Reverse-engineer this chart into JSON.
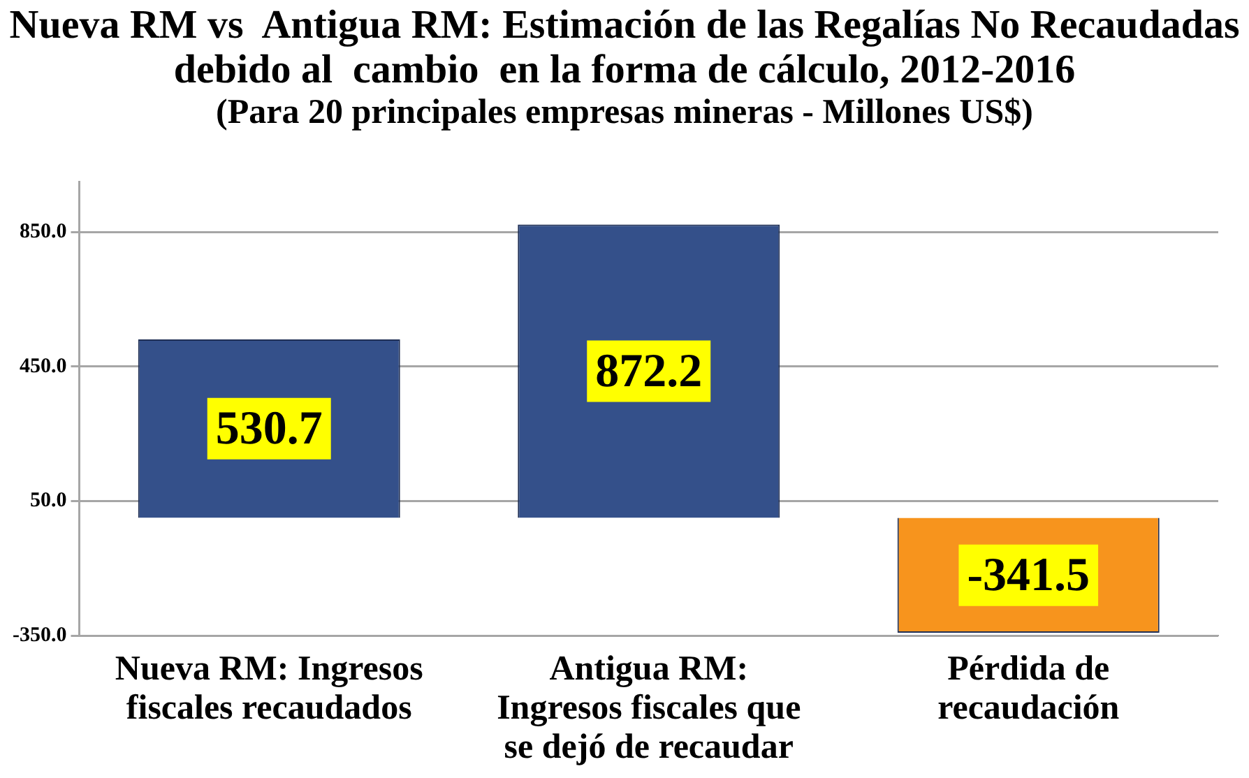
{
  "chart_data": {
    "type": "bar",
    "title": "Nueva RM vs  Antigua RM: Estimación de las Regalías No Recaudadas debido al  cambio  en la forma de cálculo, 2012-2016",
    "subtitle": "(Para 20 principales empresas mineras - Millones US$)",
    "categories": [
      "Nueva RM: Ingresos fiscales recaudados",
      "Antigua RM: Ingresos fiscales que se dejó de recaudar",
      "Pérdida de recaudación"
    ],
    "values": [
      530.7,
      872.2,
      -341.5
    ],
    "colors": [
      "#34508a",
      "#34508a",
      "#f7941d"
    ],
    "ylim": [
      -350,
      1000
    ],
    "yticks": [
      {
        "value": -350,
        "label": "-350.0"
      },
      {
        "value": 50,
        "label": "50.0"
      },
      {
        "value": 450,
        "label": "450.0"
      },
      {
        "value": 850,
        "label": "850.0"
      }
    ],
    "grid": "y",
    "data_labels": true
  }
}
